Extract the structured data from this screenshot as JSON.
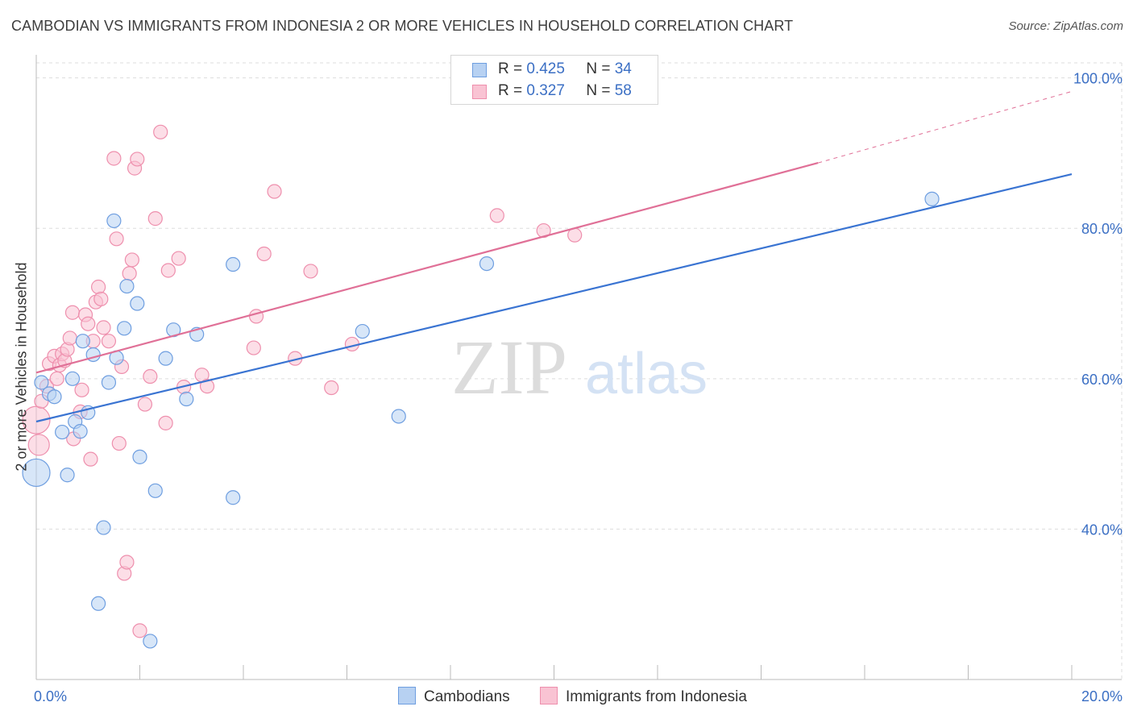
{
  "title": "CAMBODIAN VS IMMIGRANTS FROM INDONESIA 2 OR MORE VEHICLES IN HOUSEHOLD CORRELATION CHART",
  "source": "Source: ZipAtlas.com",
  "watermark": {
    "zip": "ZIP",
    "atlas": "atlas"
  },
  "legend_top": {
    "r_label": "R =",
    "n_label": "N =",
    "rows": [
      {
        "r": "0.425",
        "n": "34"
      },
      {
        "r": "0.327",
        "n": "58"
      }
    ]
  },
  "colors": {
    "blue_fill": "#b7d1f2",
    "blue_stroke": "#6e9ee0",
    "blue_line": "#3a74d2",
    "pink_fill": "#f9c3d3",
    "pink_stroke": "#ee8fad",
    "pink_line": "#e07097",
    "axis_text": "#3b6fc4",
    "grid": "#dddddd"
  },
  "chart_data": {
    "type": "scatter",
    "title": "CAMBODIAN VS IMMIGRANTS FROM INDONESIA 2 OR MORE VEHICLES IN HOUSEHOLD CORRELATION CHART",
    "xlabel": "",
    "ylabel": "2 or more Vehicles in Household",
    "xlim": [
      0,
      20
    ],
    "ylim": [
      20,
      102
    ],
    "x_ticks": [
      {
        "value": 0,
        "label": "0.0%"
      },
      {
        "value": 20,
        "label": "20.0%"
      }
    ],
    "y_ticks": [
      {
        "value": 40,
        "label": "40.0%"
      },
      {
        "value": 60,
        "label": "60.0%"
      },
      {
        "value": 80,
        "label": "80.0%"
      },
      {
        "value": 100,
        "label": "100.0%"
      }
    ],
    "series": [
      {
        "name": "Cambodians",
        "color": "blue",
        "trend": {
          "x": [
            0,
            20
          ],
          "y": [
            54.3,
            87.2
          ]
        },
        "points": [
          {
            "x": 0.0,
            "y": 47.5,
            "big": true
          },
          {
            "x": 0.1,
            "y": 59.5
          },
          {
            "x": 0.25,
            "y": 58.0
          },
          {
            "x": 0.35,
            "y": 57.6
          },
          {
            "x": 0.5,
            "y": 52.9
          },
          {
            "x": 0.6,
            "y": 47.2
          },
          {
            "x": 0.7,
            "y": 60.0
          },
          {
            "x": 0.75,
            "y": 54.3
          },
          {
            "x": 0.85,
            "y": 53.0
          },
          {
            "x": 0.9,
            "y": 65.0
          },
          {
            "x": 1.0,
            "y": 55.5
          },
          {
            "x": 1.1,
            "y": 63.2
          },
          {
            "x": 1.2,
            "y": 30.1
          },
          {
            "x": 1.3,
            "y": 40.2
          },
          {
            "x": 1.4,
            "y": 59.5
          },
          {
            "x": 1.5,
            "y": 81.0
          },
          {
            "x": 1.55,
            "y": 62.8
          },
          {
            "x": 1.7,
            "y": 66.7
          },
          {
            "x": 1.75,
            "y": 72.3
          },
          {
            "x": 1.95,
            "y": 70.0
          },
          {
            "x": 2.0,
            "y": 49.6
          },
          {
            "x": 2.2,
            "y": 25.1
          },
          {
            "x": 2.3,
            "y": 45.1
          },
          {
            "x": 2.5,
            "y": 62.7
          },
          {
            "x": 2.65,
            "y": 66.5
          },
          {
            "x": 2.9,
            "y": 57.3
          },
          {
            "x": 3.1,
            "y": 65.9
          },
          {
            "x": 3.8,
            "y": 75.2
          },
          {
            "x": 3.8,
            "y": 44.2
          },
          {
            "x": 6.3,
            "y": 66.3
          },
          {
            "x": 7.0,
            "y": 55.0
          },
          {
            "x": 8.7,
            "y": 75.3
          },
          {
            "x": 17.3,
            "y": 83.9
          }
        ]
      },
      {
        "name": "Immigrants from Indonesia",
        "color": "pink",
        "trend": {
          "x": [
            0,
            15.1
          ],
          "y": [
            60.8,
            88.7
          ]
        },
        "trend_dashed": {
          "x": [
            15.1,
            20
          ],
          "y": [
            88.7,
            98.2
          ]
        },
        "points": [
          {
            "x": 0.0,
            "y": 54.5,
            "big": true
          },
          {
            "x": 0.05,
            "y": 51.2,
            "big2": true
          },
          {
            "x": 0.1,
            "y": 57.0
          },
          {
            "x": 0.2,
            "y": 59.0
          },
          {
            "x": 0.25,
            "y": 62.0
          },
          {
            "x": 0.35,
            "y": 63.0
          },
          {
            "x": 0.4,
            "y": 60.0
          },
          {
            "x": 0.45,
            "y": 61.8
          },
          {
            "x": 0.5,
            "y": 63.3
          },
          {
            "x": 0.55,
            "y": 62.4
          },
          {
            "x": 0.6,
            "y": 63.9
          },
          {
            "x": 0.65,
            "y": 65.4
          },
          {
            "x": 0.7,
            "y": 68.8
          },
          {
            "x": 0.72,
            "y": 52.0
          },
          {
            "x": 0.85,
            "y": 55.6
          },
          {
            "x": 0.88,
            "y": 58.5
          },
          {
            "x": 0.95,
            "y": 68.5
          },
          {
            "x": 1.0,
            "y": 67.3
          },
          {
            "x": 1.05,
            "y": 49.3
          },
          {
            "x": 1.1,
            "y": 65.0
          },
          {
            "x": 1.15,
            "y": 70.2
          },
          {
            "x": 1.2,
            "y": 72.2
          },
          {
            "x": 1.25,
            "y": 70.6
          },
          {
            "x": 1.3,
            "y": 66.8
          },
          {
            "x": 1.4,
            "y": 65.0
          },
          {
            "x": 1.5,
            "y": 89.3
          },
          {
            "x": 1.55,
            "y": 78.6
          },
          {
            "x": 1.6,
            "y": 51.4
          },
          {
            "x": 1.65,
            "y": 61.6
          },
          {
            "x": 1.7,
            "y": 34.1
          },
          {
            "x": 1.75,
            "y": 35.6
          },
          {
            "x": 1.8,
            "y": 74.0
          },
          {
            "x": 1.85,
            "y": 75.8
          },
          {
            "x": 1.9,
            "y": 88.0
          },
          {
            "x": 1.95,
            "y": 89.2
          },
          {
            "x": 2.0,
            "y": 26.5
          },
          {
            "x": 2.1,
            "y": 56.6
          },
          {
            "x": 2.2,
            "y": 60.3
          },
          {
            "x": 2.3,
            "y": 81.3
          },
          {
            "x": 2.4,
            "y": 92.8
          },
          {
            "x": 2.5,
            "y": 54.1
          },
          {
            "x": 2.55,
            "y": 74.4
          },
          {
            "x": 2.75,
            "y": 76.0
          },
          {
            "x": 2.85,
            "y": 58.9
          },
          {
            "x": 3.2,
            "y": 60.5
          },
          {
            "x": 3.3,
            "y": 59.0
          },
          {
            "x": 4.2,
            "y": 64.1
          },
          {
            "x": 4.25,
            "y": 68.3
          },
          {
            "x": 4.4,
            "y": 76.6
          },
          {
            "x": 4.6,
            "y": 84.9
          },
          {
            "x": 5.0,
            "y": 62.7
          },
          {
            "x": 5.3,
            "y": 74.3
          },
          {
            "x": 5.7,
            "y": 58.8
          },
          {
            "x": 6.1,
            "y": 64.6
          },
          {
            "x": 8.9,
            "y": 81.7
          },
          {
            "x": 9.8,
            "y": 79.7
          },
          {
            "x": 10.4,
            "y": 79.1
          }
        ]
      }
    ]
  }
}
